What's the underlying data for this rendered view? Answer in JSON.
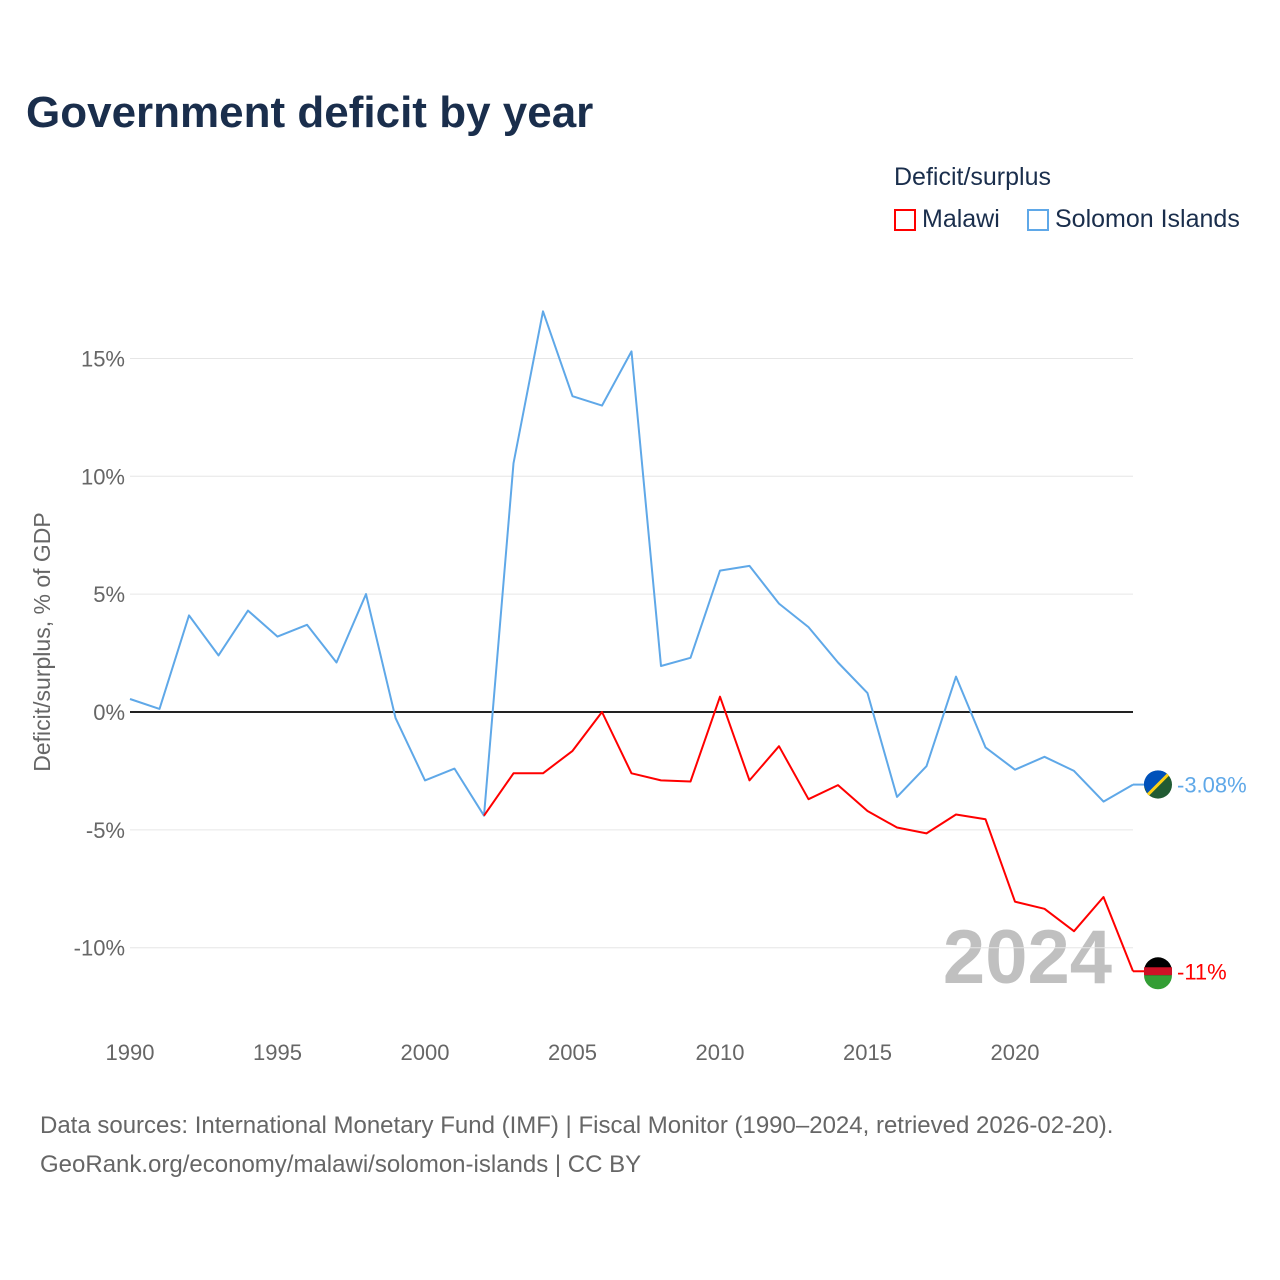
{
  "chart_data": {
    "type": "line",
    "title": "Government deficit by year",
    "ylabel": "Deficit/surplus, % of GDP",
    "xlabel": "",
    "xlim": [
      1990,
      2024
    ],
    "ylim": [
      -11.5,
      18
    ],
    "x_ticks": [
      1990,
      1995,
      2000,
      2005,
      2010,
      2015,
      2020
    ],
    "x_tick_labels": [
      "1990",
      "1995",
      "2000",
      "2005",
      "2010",
      "2015",
      "2020"
    ],
    "y_ticks": [
      15,
      10,
      5,
      0,
      -5,
      -10
    ],
    "y_tick_labels": [
      "15%",
      "10%",
      "5%",
      "0%",
      "-5%",
      "-10%"
    ],
    "grid": true,
    "legend_title": "Deficit/surplus",
    "legend_position": "top-right",
    "year_watermark": "2024",
    "series": [
      {
        "name": "Malawi",
        "color": "#ff0000",
        "end_label": "-11%",
        "x": [
          2002,
          2003,
          2004,
          2005,
          2006,
          2007,
          2008,
          2009,
          2010,
          2011,
          2012,
          2013,
          2014,
          2015,
          2016,
          2017,
          2018,
          2019,
          2020,
          2021,
          2022,
          2023,
          2024
        ],
        "values": [
          -4.4,
          -2.6,
          -2.6,
          -1.65,
          0,
          -2.6,
          -2.9,
          -2.95,
          0.65,
          -2.9,
          -1.45,
          -3.7,
          -3.1,
          -4.2,
          -4.9,
          -5.15,
          -4.35,
          -4.55,
          -8.05,
          -8.35,
          -9.3,
          -7.85,
          -11
        ]
      },
      {
        "name": "Solomon Islands",
        "color": "#5fa8e8",
        "end_label": "-3.08%",
        "x": [
          1990,
          1991,
          1992,
          1993,
          1994,
          1995,
          1996,
          1997,
          1998,
          1999,
          2000,
          2001,
          2002,
          2003,
          2004,
          2005,
          2006,
          2007,
          2008,
          2009,
          2010,
          2011,
          2012,
          2013,
          2014,
          2015,
          2016,
          2017,
          2018,
          2019,
          2020,
          2021,
          2022,
          2023,
          2024
        ],
        "values": [
          0.55,
          0.13,
          4.1,
          2.4,
          4.3,
          3.2,
          3.7,
          2.1,
          5.0,
          -0.25,
          -2.9,
          -2.4,
          -4.4,
          10.55,
          17.0,
          13.4,
          13.0,
          15.3,
          1.95,
          2.3,
          6.0,
          6.2,
          4.6,
          3.6,
          2.1,
          0.8,
          -3.6,
          -2.3,
          1.5,
          -1.5,
          -2.45,
          -1.9,
          -2.5,
          -3.8,
          -3.08
        ]
      }
    ]
  },
  "footer": {
    "line1": "Data sources: International Monetary Fund (IMF) | Fiscal Monitor (1990–2024, retrieved 2026-02-20).",
    "line2": "GeoRank.org/economy/malawi/solomon-islands | CC BY"
  }
}
